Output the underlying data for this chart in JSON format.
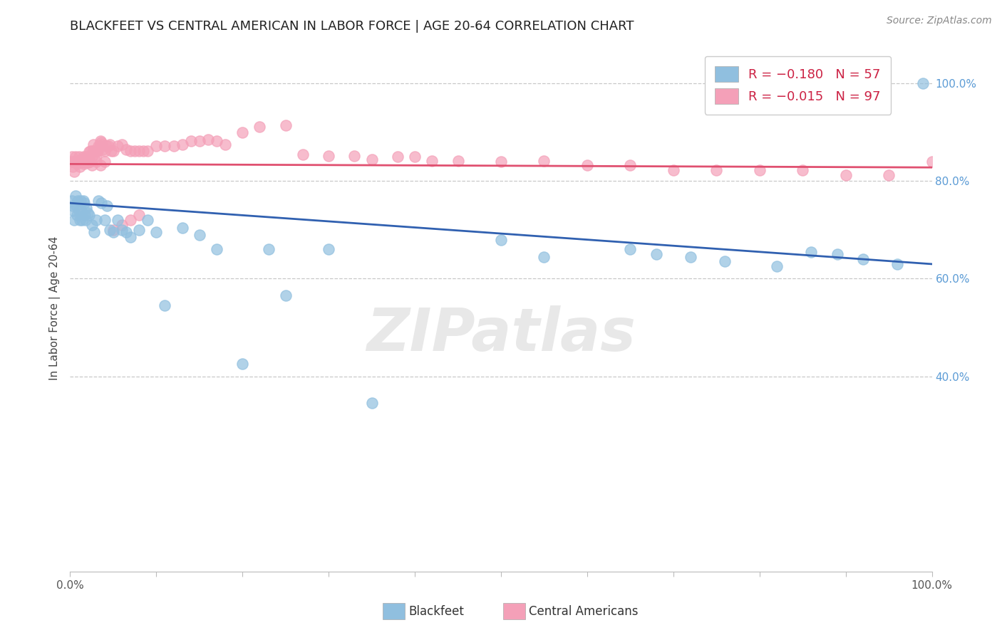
{
  "title": "BLACKFEET VS CENTRAL AMERICAN IN LABOR FORCE | AGE 20-64 CORRELATION CHART",
  "source": "Source: ZipAtlas.com",
  "ylabel": "In Labor Force | Age 20-64",
  "right_yticks": [
    1.0,
    0.8,
    0.6,
    0.4
  ],
  "right_yticklabels": [
    "100.0%",
    "80.0%",
    "60.0%",
    "40.0%"
  ],
  "blackfeet_color": "#90bfdf",
  "central_color": "#f4a0b8",
  "trend_blue": "#3060b0",
  "trend_pink": "#e05070",
  "watermark": "ZIPatlas",
  "legend_bf_label": "R = −0.180   N = 57",
  "legend_ca_label": "R = −0.015   N = 97",
  "legend_text_color": "#cc2244",
  "bf_legend_color": "#90bfdf",
  "ca_legend_color": "#f4a0b8",
  "bottom_label_bf": "Blackfeet",
  "bottom_label_ca": "Central Americans",
  "ylim_min": 0.0,
  "ylim_max": 1.08,
  "xlim_min": 0.0,
  "xlim_max": 1.0,
  "bf_x": [
    0.002,
    0.003,
    0.004,
    0.005,
    0.006,
    0.007,
    0.008,
    0.009,
    0.01,
    0.011,
    0.012,
    0.013,
    0.014,
    0.015,
    0.016,
    0.017,
    0.018,
    0.019,
    0.02,
    0.022,
    0.025,
    0.028,
    0.03,
    0.033,
    0.036,
    0.04,
    0.043,
    0.046,
    0.05,
    0.055,
    0.06,
    0.065,
    0.07,
    0.08,
    0.09,
    0.1,
    0.11,
    0.13,
    0.15,
    0.17,
    0.2,
    0.23,
    0.25,
    0.3,
    0.35,
    0.5,
    0.55,
    0.65,
    0.68,
    0.72,
    0.76,
    0.82,
    0.86,
    0.89,
    0.92,
    0.96,
    0.99
  ],
  "bf_y": [
    0.76,
    0.75,
    0.74,
    0.72,
    0.77,
    0.75,
    0.73,
    0.76,
    0.74,
    0.72,
    0.76,
    0.74,
    0.72,
    0.76,
    0.755,
    0.73,
    0.72,
    0.745,
    0.735,
    0.73,
    0.71,
    0.695,
    0.72,
    0.76,
    0.755,
    0.72,
    0.75,
    0.7,
    0.695,
    0.72,
    0.7,
    0.695,
    0.685,
    0.7,
    0.72,
    0.695,
    0.545,
    0.705,
    0.69,
    0.66,
    0.425,
    0.66,
    0.565,
    0.66,
    0.345,
    0.68,
    0.645,
    0.66,
    0.65,
    0.645,
    0.635,
    0.625,
    0.655,
    0.65,
    0.64,
    0.63,
    1.0
  ],
  "ca_x": [
    0.001,
    0.002,
    0.003,
    0.004,
    0.005,
    0.005,
    0.006,
    0.007,
    0.008,
    0.009,
    0.01,
    0.01,
    0.011,
    0.012,
    0.013,
    0.014,
    0.015,
    0.015,
    0.016,
    0.017,
    0.018,
    0.019,
    0.02,
    0.021,
    0.022,
    0.022,
    0.023,
    0.024,
    0.025,
    0.026,
    0.027,
    0.028,
    0.029,
    0.03,
    0.031,
    0.032,
    0.033,
    0.034,
    0.035,
    0.036,
    0.037,
    0.038,
    0.04,
    0.042,
    0.044,
    0.046,
    0.048,
    0.05,
    0.055,
    0.06,
    0.065,
    0.07,
    0.075,
    0.08,
    0.085,
    0.09,
    0.1,
    0.11,
    0.12,
    0.13,
    0.14,
    0.15,
    0.16,
    0.17,
    0.18,
    0.2,
    0.22,
    0.25,
    0.27,
    0.3,
    0.33,
    0.35,
    0.38,
    0.4,
    0.42,
    0.45,
    0.5,
    0.55,
    0.6,
    0.65,
    0.7,
    0.75,
    0.8,
    0.85,
    0.9,
    0.95,
    1.0,
    0.015,
    0.02,
    0.025,
    0.03,
    0.035,
    0.04,
    0.05,
    0.06,
    0.07,
    0.08
  ],
  "ca_y": [
    0.84,
    0.85,
    0.83,
    0.84,
    0.82,
    0.84,
    0.85,
    0.84,
    0.835,
    0.84,
    0.85,
    0.84,
    0.83,
    0.84,
    0.845,
    0.84,
    0.85,
    0.84,
    0.835,
    0.84,
    0.85,
    0.838,
    0.85,
    0.838,
    0.85,
    0.86,
    0.84,
    0.862,
    0.85,
    0.862,
    0.875,
    0.862,
    0.862,
    0.852,
    0.862,
    0.862,
    0.872,
    0.872,
    0.882,
    0.88,
    0.875,
    0.865,
    0.862,
    0.872,
    0.872,
    0.875,
    0.862,
    0.862,
    0.872,
    0.875,
    0.865,
    0.862,
    0.862,
    0.862,
    0.862,
    0.862,
    0.872,
    0.872,
    0.872,
    0.875,
    0.882,
    0.882,
    0.885,
    0.882,
    0.875,
    0.9,
    0.912,
    0.915,
    0.855,
    0.852,
    0.852,
    0.845,
    0.85,
    0.85,
    0.842,
    0.842,
    0.84,
    0.842,
    0.832,
    0.832,
    0.822,
    0.822,
    0.822,
    0.822,
    0.812,
    0.812,
    0.84,
    0.84,
    0.84,
    0.832,
    0.84,
    0.832,
    0.84,
    0.7,
    0.71,
    0.72,
    0.73
  ]
}
